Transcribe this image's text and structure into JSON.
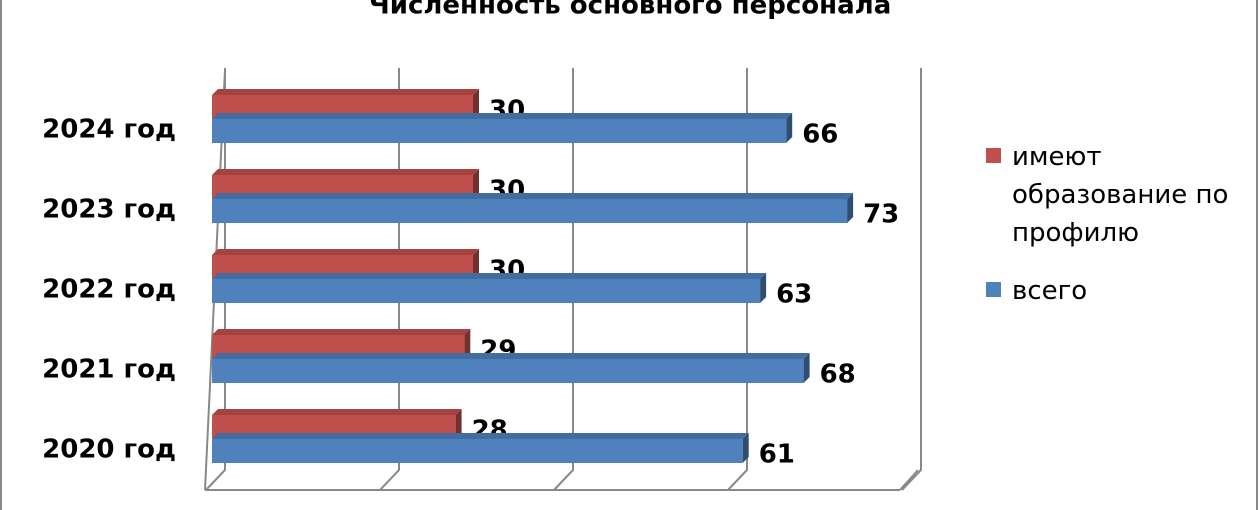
{
  "chart_data": {
    "type": "bar",
    "orientation": "horizontal",
    "title": "Численность основного персонала",
    "categories": [
      "2020 год",
      "2021 год",
      "2022 год",
      "2023 год",
      "2024 год"
    ],
    "series": [
      {
        "name": "имеют образование по профилю",
        "color": "#c0504d",
        "values": [
          28,
          29,
          30,
          30,
          30
        ]
      },
      {
        "name": "всего",
        "color": "#4f81bd",
        "values": [
          61,
          68,
          63,
          73,
          66
        ]
      }
    ],
    "xlim": [
      0,
      80
    ],
    "xticks": [
      0,
      20,
      40,
      60,
      80
    ],
    "grid": true,
    "legend": "right"
  }
}
